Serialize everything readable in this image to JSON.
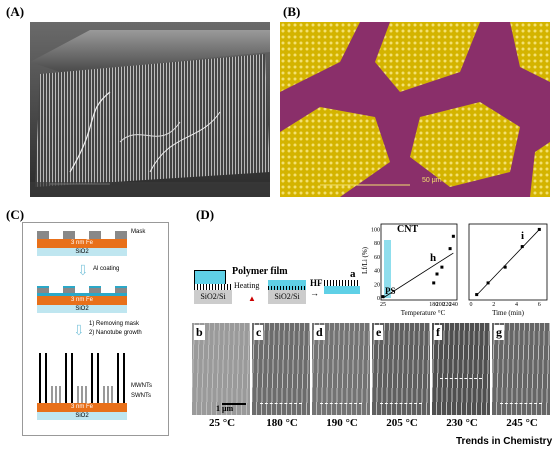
{
  "panels": {
    "A": "(A)",
    "B": "(B)",
    "C": "(C)",
    "D": "(D)"
  },
  "panel_b": {
    "scale": "50 μm"
  },
  "panel_c": {
    "mask": "Mask",
    "fe": "3 nm Fe",
    "sio2": "SiO2",
    "al_coating": "Al coating",
    "step1": "1) Removing mask",
    "step2": "2) Nanotube growth",
    "mwnts": "MWNTs",
    "swnts": "SWNTs"
  },
  "panel_d": {
    "a": {
      "letter": "a",
      "polymer": "Polymer film",
      "heating": "Heating",
      "hf": "HF",
      "sub1": "SiO2/Si",
      "sub2": "SiO2/Si"
    },
    "h": {
      "letter": "h",
      "cnt": "CNT",
      "ps": "PS",
      "ylabel": "Lf/Li (%)",
      "xlabel": "Temperature °C",
      "xticks": [
        "25",
        "180",
        "200",
        "220",
        "240"
      ],
      "yticks": [
        "0",
        "20",
        "40",
        "60",
        "80",
        "100"
      ]
    },
    "i": {
      "letter": "i",
      "xlabel": "Time (min)",
      "xticks": [
        "0",
        "2",
        "4",
        "6"
      ]
    },
    "sem_letters": [
      "b",
      "c",
      "d",
      "e",
      "f",
      "g"
    ],
    "scale": "1 μm",
    "temps": [
      "25 °C",
      "180 °C",
      "190 °C",
      "205 °C",
      "230 °C",
      "245 °C"
    ]
  },
  "footer": "Trends in Chemistry",
  "chart_data": [
    {
      "type": "scatter",
      "xlabel": "Temperature °C",
      "ylabel": "Lf/Li (%)",
      "xlim": [
        25,
        245
      ],
      "ylim": [
        0,
        105
      ],
      "x": [
        25,
        180,
        190,
        205,
        230,
        240
      ],
      "values": [
        2,
        22,
        35,
        45,
        72,
        90
      ]
    },
    {
      "type": "scatter",
      "xlabel": "Time (min)",
      "xlim": [
        0,
        6.5
      ],
      "ylim": [
        0,
        105
      ],
      "x": [
        0.5,
        1.5,
        3,
        4.5,
        6
      ],
      "values": [
        5,
        22,
        45,
        75,
        100
      ]
    }
  ]
}
